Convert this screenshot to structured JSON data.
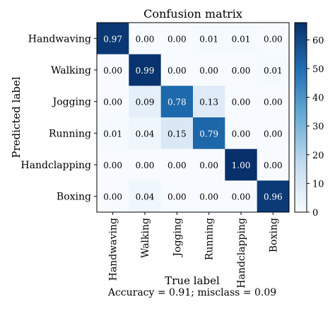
{
  "chart_data": {
    "type": "heatmap",
    "title": "Confusion matrix",
    "xlabel": "True label",
    "ylabel": "Predicted label",
    "footer": "Accuracy = 0.91; misclass = 0.09",
    "x_categories": [
      "Handwaving",
      "Walking",
      "Jogging",
      "Running",
      "Handclapping",
      "Boxing"
    ],
    "y_categories": [
      "Handwaving",
      "Walking",
      "Jogging",
      "Running",
      "Handclapping",
      "Boxing"
    ],
    "values": [
      [
        0.97,
        0.0,
        0.0,
        0.01,
        0.01,
        0.0
      ],
      [
        0.0,
        0.99,
        0.0,
        0.0,
        0.0,
        0.01
      ],
      [
        0.0,
        0.09,
        0.78,
        0.13,
        0.0,
        0.0
      ],
      [
        0.01,
        0.04,
        0.15,
        0.79,
        0.0,
        0.0
      ],
      [
        0.0,
        0.0,
        0.0,
        0.0,
        1.0,
        0.0
      ],
      [
        0.0,
        0.04,
        0.0,
        0.0,
        0.0,
        0.96
      ]
    ],
    "value_labels": [
      [
        "0.97",
        "0.00",
        "0.00",
        "0.01",
        "0.01",
        "0.00"
      ],
      [
        "0.00",
        "0.99",
        "0.00",
        "0.00",
        "0.00",
        "0.01"
      ],
      [
        "0.00",
        "0.09",
        "0.78",
        "0.13",
        "0.00",
        "0.00"
      ],
      [
        "0.01",
        "0.04",
        "0.15",
        "0.79",
        "0.00",
        "0.00"
      ],
      [
        "0.00",
        "0.00",
        "0.00",
        "0.00",
        "1.00",
        "0.00"
      ],
      [
        "0.00",
        "0.04",
        "0.00",
        "0.00",
        "0.00",
        "0.96"
      ]
    ],
    "colorbar": {
      "range": [
        0,
        66
      ],
      "ticks": [
        0,
        10,
        20,
        30,
        40,
        50,
        60
      ],
      "tick_labels": [
        "0",
        "10",
        "20",
        "30",
        "40",
        "50",
        "60"
      ]
    },
    "colormap": "Blues",
    "colors": {
      "low": "#f7fbff",
      "mid_light": "#c6dbef",
      "mid": "#6baed6",
      "mid_dark": "#2171b5",
      "high": "#08306b"
    },
    "grid": false
  }
}
